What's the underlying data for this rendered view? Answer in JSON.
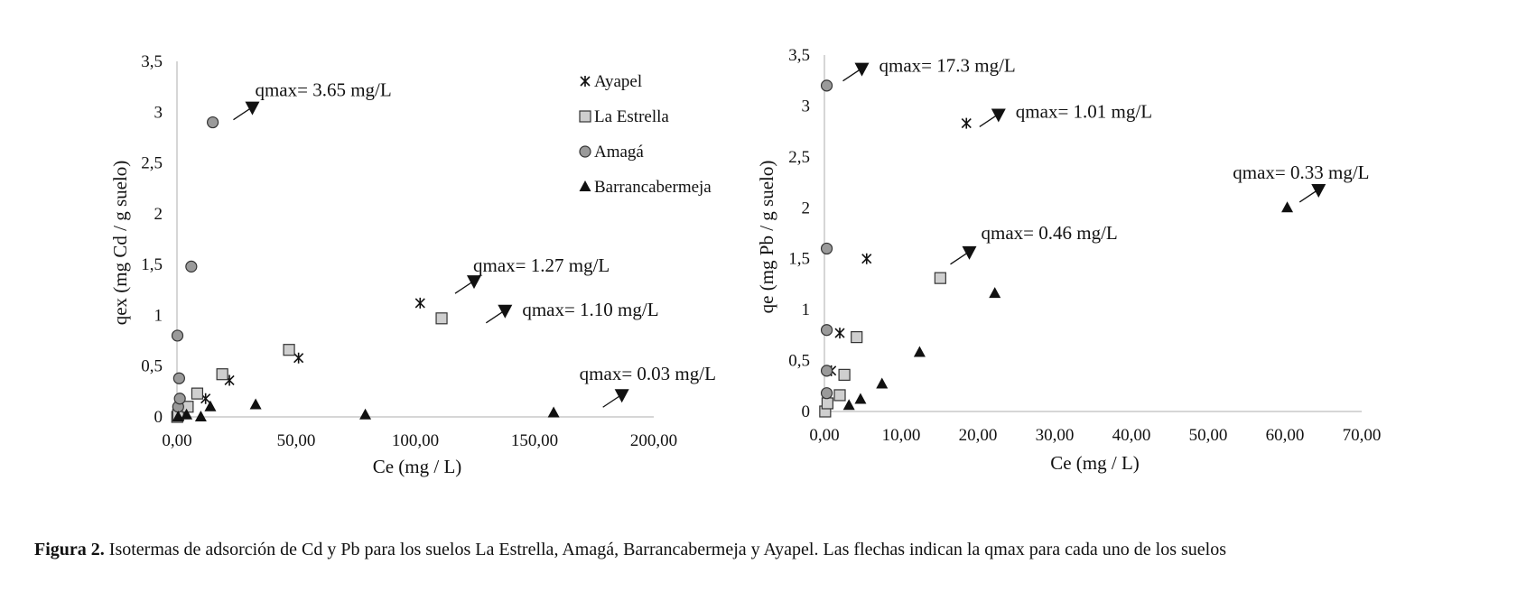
{
  "colors": {
    "axis": "#c8c8c8",
    "marker_fill_light": "#cfcfcf",
    "marker_fill_mid": "#9a9a9a",
    "marker_stroke": "#333333",
    "text": "#111111"
  },
  "chart_data": [
    {
      "type": "scatter",
      "title": "",
      "xlabel": "Ce (mg / L)",
      "ylabel": "qex (mg Cd / g suelo)",
      "xlim": [
        0,
        200
      ],
      "ylim": [
        0,
        3.5
      ],
      "x_ticks": [
        "0,00",
        "50,00",
        "100,00",
        "150,00",
        "200,00"
      ],
      "y_ticks": [
        "0",
        "0,5",
        "1",
        "1,5",
        "2",
        "2,5",
        "3",
        "3,5"
      ],
      "grid": false,
      "legend_position": "top-right",
      "series": [
        {
          "name": "Ayapel",
          "marker": "asterisk",
          "points": [
            [
              0.3,
              0.01
            ],
            [
              2.5,
              0.04
            ],
            [
              12,
              0.18
            ],
            [
              22,
              0.36
            ],
            [
              51,
              0.58
            ],
            [
              102,
              1.12
            ]
          ]
        },
        {
          "name": "La Estrella",
          "marker": "square",
          "points": [
            [
              0.1,
              0.0
            ],
            [
              0.5,
              0.02
            ],
            [
              4.5,
              0.1
            ],
            [
              8.5,
              0.23
            ],
            [
              19,
              0.42
            ],
            [
              47,
              0.66
            ],
            [
              111,
              0.97
            ]
          ]
        },
        {
          "name": "Amagá",
          "marker": "circle",
          "points": [
            [
              0.2,
              0.8
            ],
            [
              0.5,
              0.1
            ],
            [
              0.9,
              0.38
            ],
            [
              1.2,
              0.18
            ],
            [
              6,
              1.48
            ],
            [
              15,
              2.9
            ]
          ]
        },
        {
          "name": "Barrancabermeja",
          "marker": "triangle",
          "points": [
            [
              0.5,
              0.0
            ],
            [
              4,
              0.02
            ],
            [
              10,
              0.0
            ],
            [
              14,
              0.1
            ],
            [
              33,
              0.12
            ],
            [
              79,
              0.02
            ],
            [
              158,
              0.04
            ]
          ]
        }
      ],
      "annotations": [
        {
          "text": "qmax= 3.65 mg/L",
          "target": [
            32,
            3.05
          ]
        },
        {
          "text": "qmax= 1.27 mg/L",
          "target": [
            125,
            1.34
          ]
        },
        {
          "text": "qmax= 1.10 mg/L",
          "target": [
            138,
            1.05
          ]
        },
        {
          "text": "qmax= 0.03 mg/L",
          "target": [
            187,
            0.22
          ]
        }
      ]
    },
    {
      "type": "scatter",
      "title": "",
      "xlabel": "Ce (mg / L)",
      "ylabel": "qe (mg Pb / g suelo)",
      "xlim": [
        0,
        70
      ],
      "ylim": [
        0,
        3.5
      ],
      "x_ticks": [
        "0,00",
        "10,00",
        "20,00",
        "30,00",
        "40,00",
        "50,00",
        "60,00",
        "70,00"
      ],
      "y_ticks": [
        "0",
        "0,5",
        "1",
        "1,5",
        "2",
        "2,5",
        "3",
        "3,5"
      ],
      "grid": false,
      "series": [
        {
          "name": "Ayapel",
          "marker": "asterisk",
          "points": [
            [
              0.9,
              0.4
            ],
            [
              2.0,
              0.77
            ],
            [
              5.5,
              1.5
            ],
            [
              18.5,
              2.83
            ]
          ]
        },
        {
          "name": "La Estrella",
          "marker": "square",
          "points": [
            [
              0.1,
              0.0
            ],
            [
              0.4,
              0.08
            ],
            [
              2.0,
              0.16
            ],
            [
              2.6,
              0.36
            ],
            [
              4.2,
              0.73
            ],
            [
              15.1,
              1.31
            ]
          ]
        },
        {
          "name": "Amagá",
          "marker": "circle",
          "points": [
            [
              0.3,
              0.18
            ],
            [
              0.3,
              0.4
            ],
            [
              0.3,
              0.8
            ],
            [
              0.3,
              1.6
            ],
            [
              0.3,
              3.2
            ]
          ]
        },
        {
          "name": "Barrancabermeja",
          "marker": "triangle",
          "points": [
            [
              3.2,
              0.06
            ],
            [
              4.7,
              0.12
            ],
            [
              7.5,
              0.27
            ],
            [
              12.4,
              0.58
            ],
            [
              22.2,
              1.16
            ],
            [
              60.3,
              2.0
            ]
          ]
        }
      ],
      "annotations": [
        {
          "text": "qmax= 17.3 mg/L",
          "target": [
            5.0,
            3.37
          ]
        },
        {
          "text": "qmax= 1.01 mg/L",
          "target": [
            22.8,
            2.92
          ]
        },
        {
          "text": "qmax= 0.46 mg/L",
          "target": [
            19.0,
            1.57
          ]
        },
        {
          "text": "qmax= 0.33 mg/L",
          "target": [
            64.5,
            2.18
          ]
        }
      ]
    }
  ],
  "caption": {
    "label": "Figura 2.",
    "text": " Isotermas de adsorción de Cd y Pb para los suelos La Estrella, Amagá, Barrancabermeja y Ayapel. Las flechas indican la qmax para cada uno de los suelos"
  }
}
